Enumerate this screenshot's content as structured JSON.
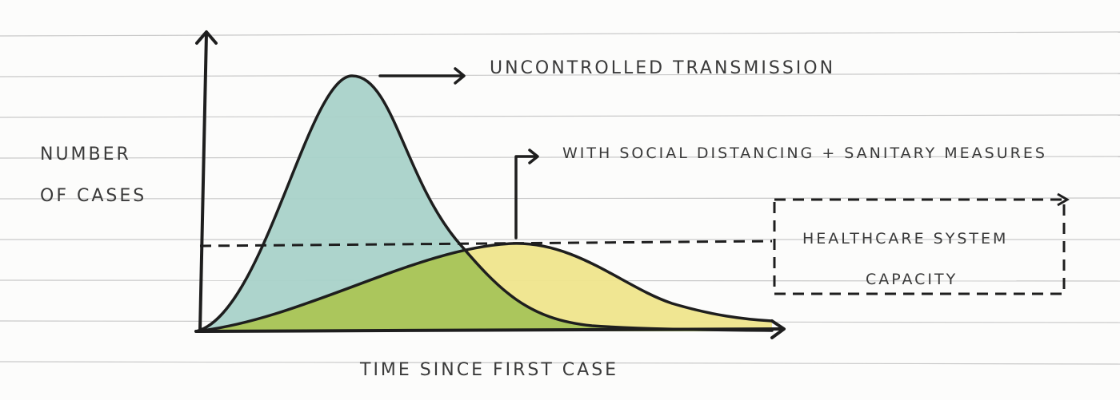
{
  "labels": {
    "y_axis_line1": "NUMBER",
    "y_axis_line2": "OF CASES",
    "x_axis": "TIME SINCE FIRST CASE",
    "uncontrolled": "UNCONTROLLED TRANSMISSION",
    "distancing": "WITH SOCIAL DISTANCING + SANITARY MEASURES",
    "capacity_line1": "HEALTHCARE SYSTEM",
    "capacity_line2": "CAPACITY"
  },
  "colors": {
    "ink": "#1e1e1e",
    "paper": "#fcfcfb",
    "rule_lines": "#c9c9c9",
    "uncontrolled_fill": "#a9d2c9",
    "distancing_fill": "#efe58c",
    "overlap_fill": "#a8c45a"
  }
}
